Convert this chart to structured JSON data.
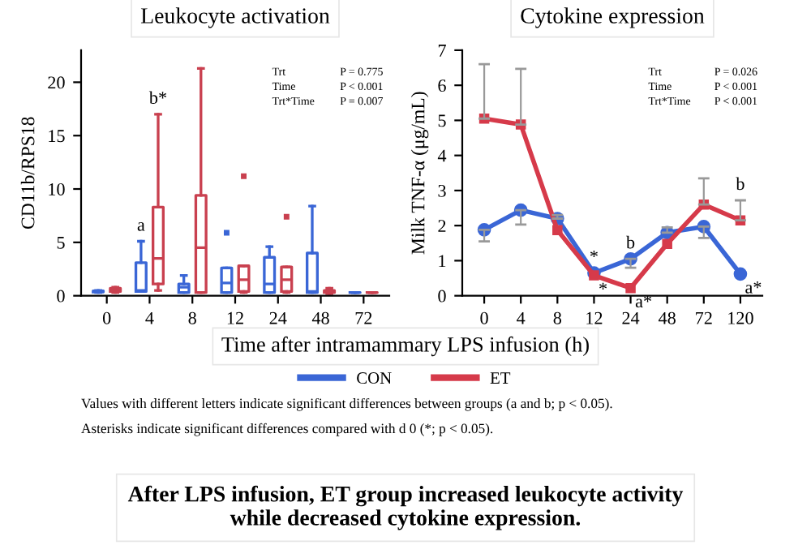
{
  "chart_data": [
    {
      "type": "box",
      "title": "Leukocyte activation",
      "ylabel": "CD11b/RPS18",
      "xlabel": "Time after intramammary LPS infusion (h)",
      "categories": [
        "0",
        "4",
        "8",
        "12",
        "24",
        "48",
        "72"
      ],
      "ylim": [
        0,
        23
      ],
      "yticks": [
        0,
        5,
        10,
        15,
        20
      ],
      "series": [
        {
          "name": "CON",
          "color": "#3a66d6",
          "boxes": [
            {
              "low": 0.3,
              "q1": 0.35,
              "median": 0.4,
              "q3": 0.45,
              "high": 0.5
            },
            {
              "low": 0.4,
              "q1": 0.4,
              "median": 0.5,
              "q3": 3.1,
              "high": 5.1
            },
            {
              "low": 0.3,
              "q1": 0.3,
              "median": 0.8,
              "q3": 1.1,
              "high": 1.9
            },
            {
              "low": 0.3,
              "q1": 0.3,
              "median": 1.2,
              "q3": 2.6,
              "high": 2.6,
              "outliers": [
                5.9
              ]
            },
            {
              "low": 0.3,
              "q1": 0.3,
              "median": 1.1,
              "q3": 3.6,
              "high": 4.6
            },
            {
              "low": 0.3,
              "q1": 0.3,
              "median": 0.4,
              "q3": 4.0,
              "high": 8.4
            },
            {
              "low": 0.3,
              "q1": 0.3,
              "median": 0.3,
              "q3": 0.3,
              "high": 0.3
            }
          ]
        },
        {
          "name": "ET",
          "color": "#c9404f",
          "boxes": [
            {
              "low": 0.3,
              "q1": 0.4,
              "median": 0.5,
              "q3": 0.7,
              "high": 0.8
            },
            {
              "low": 0.5,
              "q1": 1.1,
              "median": 3.5,
              "q3": 8.3,
              "high": 17.0
            },
            {
              "low": 0.3,
              "q1": 0.3,
              "median": 4.5,
              "q3": 9.4,
              "high": 21.3
            },
            {
              "low": 0.3,
              "q1": 0.4,
              "median": 1.5,
              "q3": 2.8,
              "high": 2.8,
              "outliers": [
                11.2
              ]
            },
            {
              "low": 0.3,
              "q1": 0.4,
              "median": 1.5,
              "q3": 2.7,
              "high": 2.7,
              "outliers": [
                7.4
              ]
            },
            {
              "low": 0.2,
              "q1": 0.3,
              "median": 0.4,
              "q3": 0.5,
              "high": 0.7
            },
            {
              "low": 0.3,
              "q1": 0.3,
              "median": 0.3,
              "q3": 0.3,
              "high": 0.3
            }
          ]
        }
      ],
      "annotations": [
        {
          "text": "a",
          "x": "4",
          "y": 5.1
        },
        {
          "text": "b*",
          "x": "4",
          "y": 17.0
        },
        "Trt",
        "P = 0.775",
        "Time",
        "P < 0.001",
        "Trt*Time",
        "P = 0.007",
        "Values with different letters indicate significant differences between groups (a and b; p < 0.05).",
        "Asterisks indicate significant differences compared with d 0 (*; p < 0.05).",
        "After LPS infusion, ET group increased leukocyte activity\nwhile decreased cytokine expression."
      ],
      "legend": "bottom",
      "grid": false
    },
    {
      "type": "line",
      "title": "Cytokine expression",
      "ylabel": "Milk TNF-α (μg/mL)",
      "categories": [
        "0",
        "4",
        "8",
        "12",
        "24",
        "48",
        "72",
        "120"
      ],
      "ylim": [
        0,
        7
      ],
      "yticks": [
        0,
        1,
        2,
        3,
        4,
        5,
        6,
        7
      ],
      "series": [
        {
          "name": "CON",
          "color": "#3a66d6",
          "marker": "circle",
          "values": [
            1.88,
            2.44,
            2.2,
            0.65,
            1.05,
            1.8,
            1.97,
            0.62
          ],
          "errors": [
            [
              1.55,
              1.88
            ],
            [
              2.03,
              2.44
            ],
            [
              2.2,
              2.3
            ],
            null,
            [
              0.8,
              1.05
            ],
            [
              1.8,
              1.95
            ],
            [
              1.65,
              1.97
            ],
            null
          ]
        },
        {
          "name": "ET",
          "color": "#d63a4a",
          "marker": "square",
          "values": [
            5.05,
            4.88,
            1.87,
            0.58,
            0.22,
            1.48,
            2.6,
            2.15
          ],
          "errors": [
            [
              5.05,
              6.6
            ],
            [
              4.88,
              6.47
            ],
            null,
            null,
            null,
            null,
            [
              2.6,
              3.35
            ],
            [
              2.15,
              2.72
            ]
          ]
        }
      ],
      "annotations": [
        {
          "text": "*",
          "x": "12",
          "y": 0.65
        },
        {
          "text": "*",
          "x": "12",
          "y": 0.58
        },
        {
          "text": "b",
          "x": "24",
          "y": 1.05
        },
        {
          "text": "a*",
          "x": "24",
          "y": 0.22
        },
        {
          "text": "b",
          "x": "120",
          "y": 2.15
        },
        {
          "text": "a*",
          "x": "120",
          "y": 0.62
        },
        "Trt",
        "P = 0.026",
        "Time",
        "P < 0.001",
        "Trt*Time",
        "P < 0.001"
      ],
      "legend": "bottom",
      "grid": false
    }
  ]
}
